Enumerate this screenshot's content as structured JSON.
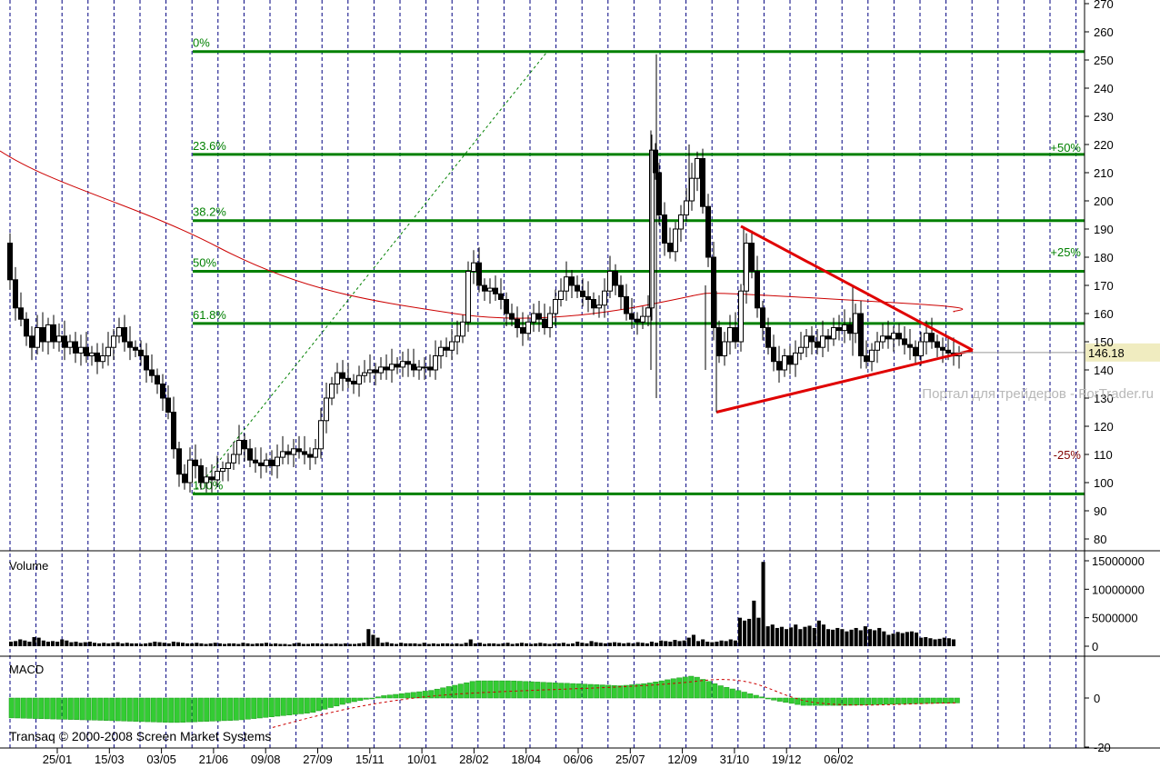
{
  "chart_data": {
    "type": "candlestick",
    "price": {
      "ylim": [
        80,
        270
      ],
      "y_ticks": [
        80,
        90,
        100,
        110,
        120,
        130,
        140,
        150,
        160,
        170,
        180,
        190,
        200,
        210,
        220,
        230,
        240,
        250,
        260,
        270
      ],
      "last_price": "146.18",
      "last_value": 146.18,
      "fib_levels": [
        {
          "label": "0%",
          "value": 253
        },
        {
          "label": "23.6%",
          "value": 216.5
        },
        {
          "label": "38.2%",
          "value": 193
        },
        {
          "label": "50%",
          "value": 175
        },
        {
          "label": "61.8%",
          "value": 156.5
        },
        {
          "label": "100%",
          "value": 96
        }
      ],
      "percent_labels": [
        {
          "label": "+50%",
          "value": 219,
          "color": "#008000"
        },
        {
          "label": "+25%",
          "value": 182,
          "color": "#008000"
        },
        {
          "label": "-25%",
          "value": 110,
          "color": "#800000"
        }
      ]
    },
    "volume": {
      "label": "Volume",
      "ylim": [
        0,
        15000000
      ],
      "y_ticks": [
        "15000000",
        "10000000",
        "5000000",
        "0"
      ],
      "y_values": [
        15000000,
        10000000,
        5000000,
        0
      ],
      "bars_millions": [
        0.8,
        0.9,
        1.2,
        1.0,
        0.8,
        1.6,
        1.5,
        1.0,
        0.8,
        0.9,
        0.8,
        1.2,
        1.0,
        0.7,
        0.8,
        0.6,
        0.7,
        0.8,
        0.6,
        0.5,
        0.6,
        0.5,
        0.6,
        0.7,
        0.5,
        0.6,
        0.5,
        0.5,
        0.4,
        0.5,
        0.6,
        0.8,
        0.7,
        0.6,
        0.5,
        0.8,
        0.7,
        0.6,
        0.5,
        0.5,
        0.6,
        0.5,
        0.4,
        0.5,
        0.6,
        0.5,
        0.4,
        0.5,
        0.5,
        0.4,
        0.6,
        0.5,
        0.4,
        0.5,
        0.5,
        0.6,
        0.4,
        0.5,
        0.4,
        0.4,
        0.3,
        0.5,
        0.6,
        0.4,
        0.4,
        0.5,
        0.5,
        0.4,
        0.5,
        0.4,
        0.5,
        0.4,
        0.5,
        0.4,
        0.4,
        0.5,
        0.6,
        3.0,
        2.0,
        1.5,
        0.6,
        0.7,
        0.5,
        0.4,
        0.6,
        0.5,
        0.5,
        0.5,
        0.4,
        0.6,
        0.4,
        0.5,
        0.4,
        0.5,
        0.5,
        0.4,
        0.5,
        0.4,
        0.6,
        1.2,
        0.5,
        0.6,
        0.4,
        0.5,
        0.5,
        0.4,
        0.5,
        0.6,
        0.4,
        0.5,
        0.6,
        0.5,
        0.4,
        0.5,
        0.6,
        0.5,
        0.4,
        0.5,
        0.5,
        0.6,
        0.4,
        0.5,
        0.8,
        0.6,
        0.5,
        0.9,
        0.7,
        0.6,
        0.5,
        0.6,
        0.7,
        0.6,
        0.5,
        0.6,
        0.5,
        0.7,
        0.6,
        0.5,
        0.8,
        0.6,
        1.0,
        0.9,
        0.8,
        1.1,
        0.9,
        1.0,
        1.5,
        2.0,
        0.9,
        1.2,
        0.8,
        0.7,
        0.8,
        1.0,
        0.9,
        1.2,
        1.0,
        5.0,
        4.5,
        4.8,
        8.0,
        5.0,
        14.8,
        3.5,
        3.8,
        3.2,
        3.4,
        3.0,
        3.3,
        3.8,
        3.0,
        3.4,
        3.6,
        3.2,
        4.5,
        3.8,
        3.0,
        2.9,
        3.2,
        3.0,
        2.6,
        2.9,
        3.2,
        2.8,
        3.5,
        3.0,
        2.8,
        3.2,
        2.6,
        2.0,
        2.2,
        2.5,
        2.3,
        2.5,
        2.6,
        2.4,
        1.5,
        1.6,
        1.4,
        1.2,
        1.3,
        1.5,
        1.4,
        1.2
      ]
    },
    "macd": {
      "label": "MACD",
      "y_ticks": [
        "0",
        "-20"
      ],
      "y_values": [
        0,
        -20
      ],
      "ylim": [
        -20,
        12
      ]
    },
    "x_ticks": [
      "25/01",
      "15/03",
      "03/05",
      "21/06",
      "09/08",
      "27/09",
      "15/11",
      "10/01",
      "28/02",
      "18/04",
      "06/06",
      "25/07",
      "12/09",
      "31/10",
      "19/12",
      "06/02"
    ],
    "watermark": "Портал для трейдеров - ForTrader.ru",
    "copyright": "Transaq © 2000-2008 Screen Market Systems",
    "colors": {
      "fib_line": "#008000",
      "ma_line": "#cc0000",
      "triangle": "#e00000",
      "macd_bar": "#33cc33",
      "last_price_bg": "#f0ecc0",
      "grid": "#000080"
    }
  }
}
